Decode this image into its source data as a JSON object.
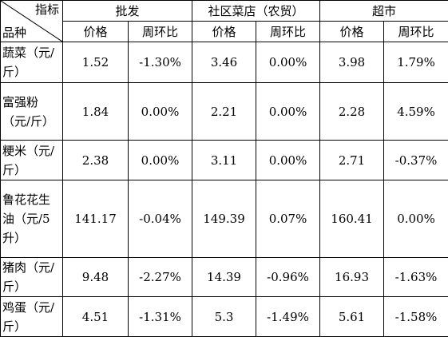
{
  "header": {
    "corner_top": "指标",
    "corner_bottom": "品种",
    "groups": [
      "批发",
      "社区菜店（农贸）",
      "超市"
    ],
    "subheaders": [
      "价格",
      "周环比",
      "价格",
      "周环比",
      "价格",
      "周环比"
    ]
  },
  "table": {
    "rows": [
      [
        "蔬菜（元/斤）",
        "1.52",
        "-1.30%",
        "3.46",
        "0.00%",
        "3.98",
        "1.79%"
      ],
      [
        "富强粉（元/斤）",
        "1.84",
        "0.00%",
        "2.21",
        "0.00%",
        "2.28",
        "4.59%"
      ],
      [
        "粳米（元/斤）",
        "2.38",
        "0.00%",
        "3.11",
        "0.00%",
        "2.71",
        "-0.37%"
      ],
      [
        "鲁花花生油（元/5升）",
        "141.17",
        "-0.04%",
        "149.39",
        "0.07%",
        "160.41",
        "0.00%"
      ],
      [
        "猪肉（元/斤）",
        "9.48",
        "-2.27%",
        "14.39",
        "-0.96%",
        "16.93",
        "-1.63%"
      ],
      [
        "鸡蛋（元/斤）",
        "4.51",
        "-1.31%",
        "5.3",
        "-1.49%",
        "5.61",
        "-1.58%"
      ]
    ]
  }
}
